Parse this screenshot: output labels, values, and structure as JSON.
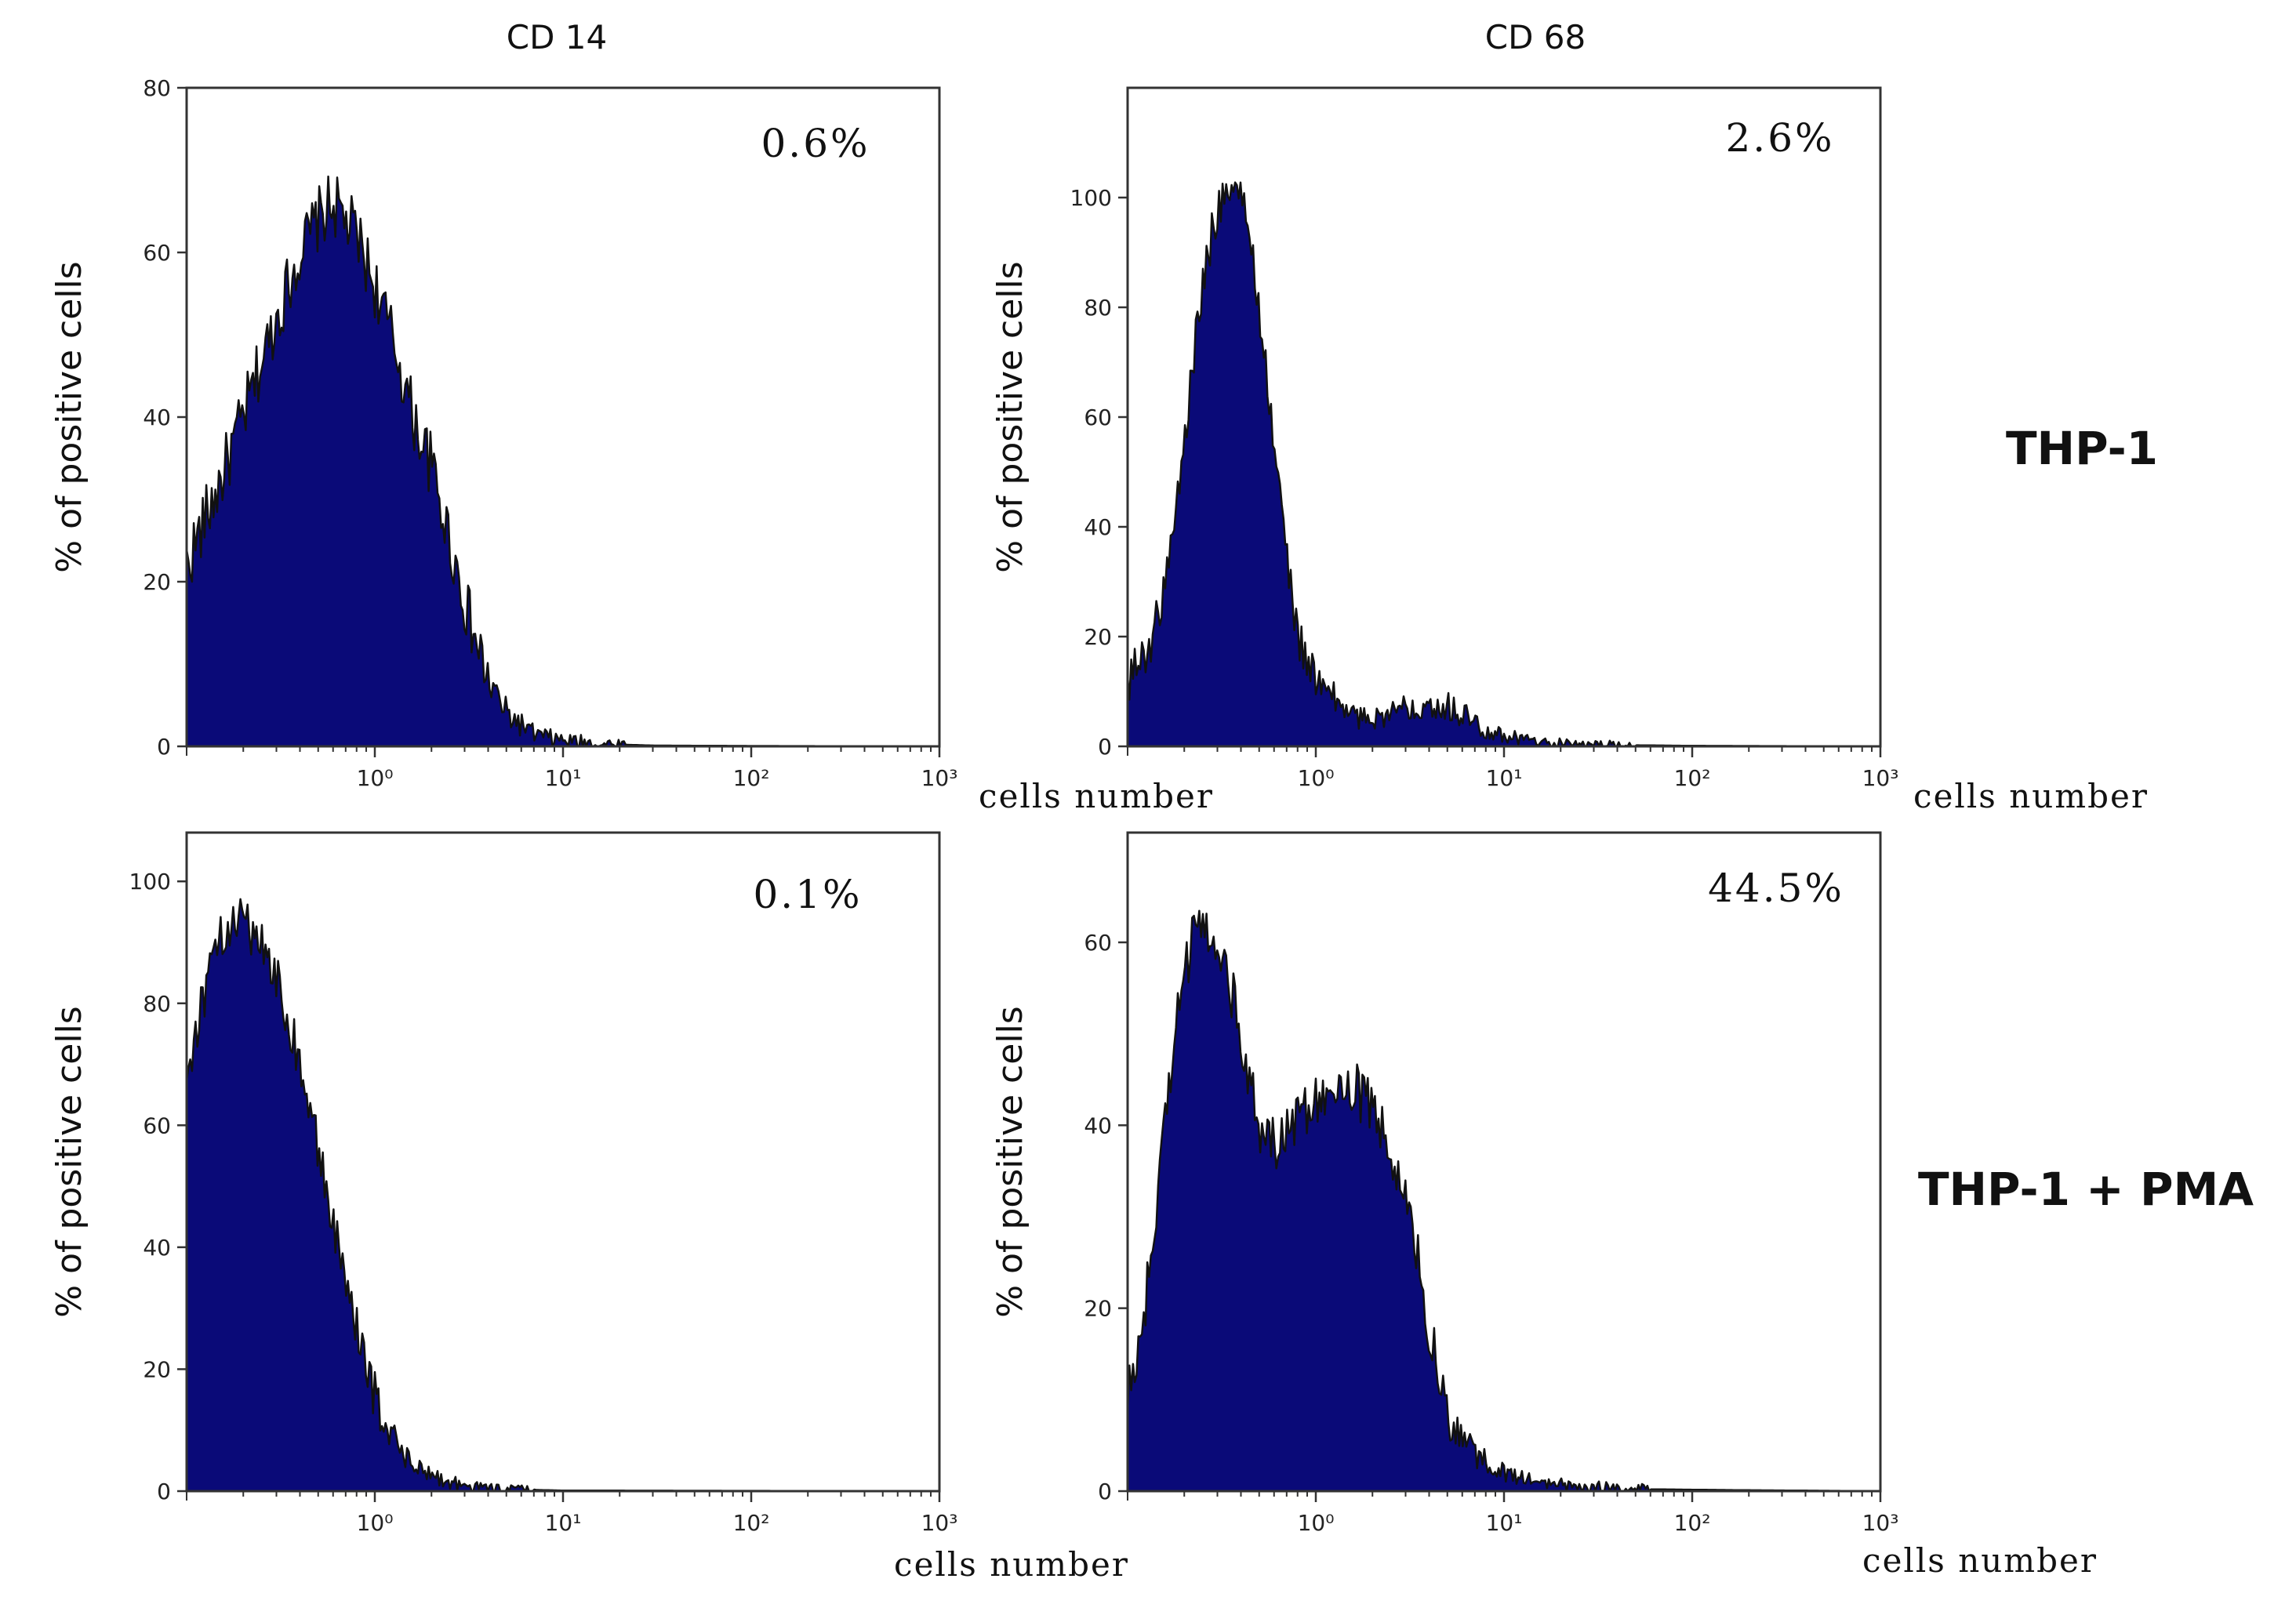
{
  "figure": {
    "column_titles": [
      "CD 14",
      "CD 68"
    ],
    "row_labels": [
      "THP-1",
      "THP-1 + PMA"
    ],
    "colors": {
      "fill": "#0a0a78",
      "outline": "#111111",
      "frame": "#333333"
    }
  },
  "chart_data": [
    {
      "type": "area",
      "name": "CD 14 / THP-1",
      "percent_label": "0.6%",
      "ylabel": "% of positive cells",
      "xlabel": "cells number",
      "xscale": "log",
      "xlim": [
        0.1,
        1000
      ],
      "ylim": [
        0,
        80
      ],
      "yticks": [
        0,
        20,
        40,
        60,
        80
      ],
      "xticks": [
        {
          "value": 1,
          "label": "10⁰"
        },
        {
          "value": 10,
          "label": "10¹"
        },
        {
          "value": 100,
          "label": "10²"
        },
        {
          "value": 1000,
          "label": "10³"
        }
      ],
      "x": [
        0.1,
        0.15,
        0.2,
        0.3,
        0.4,
        0.5,
        0.6,
        0.8,
        1.0,
        1.3,
        1.6,
        2.0,
        2.5,
        3.2,
        4.0,
        5.0,
        7.0,
        10,
        15,
        30,
        100,
        1000
      ],
      "values": [
        22,
        32,
        40,
        52,
        60,
        64,
        66,
        62,
        56,
        48,
        40,
        34,
        25,
        15,
        8,
        4,
        1.5,
        0.7,
        0.3,
        0.1,
        0.05,
        0
      ],
      "noise": 4
    },
    {
      "type": "area",
      "name": "CD 68 / THP-1",
      "percent_label": "2.6%",
      "ylabel": "% of positive cells",
      "xlabel": "cells number",
      "xscale": "log",
      "xlim": [
        0.1,
        1000
      ],
      "ylim": [
        0,
        120
      ],
      "yticks": [
        0,
        20,
        40,
        60,
        80,
        100
      ],
      "xticks": [
        {
          "value": 1,
          "label": "10⁰"
        },
        {
          "value": 10,
          "label": "10¹"
        },
        {
          "value": 100,
          "label": "10²"
        },
        {
          "value": 1000,
          "label": "10³"
        }
      ],
      "x": [
        0.1,
        0.13,
        0.16,
        0.2,
        0.25,
        0.3,
        0.35,
        0.4,
        0.45,
        0.5,
        0.6,
        0.7,
        0.8,
        1.0,
        1.3,
        1.7,
        2.5,
        3.5,
        4.5,
        6,
        8,
        10,
        15,
        25,
        100,
        1000
      ],
      "values": [
        12,
        18,
        30,
        55,
        85,
        98,
        103,
        100,
        92,
        80,
        55,
        35,
        20,
        12,
        8,
        5,
        6,
        8,
        8,
        6,
        3,
        2,
        0.8,
        0.3,
        0.1,
        0
      ],
      "noise": 4
    },
    {
      "type": "area",
      "name": "CD 14 / THP-1 + PMA",
      "percent_label": "0.1%",
      "ylabel": "% of positive cells",
      "xlabel": "cells number",
      "xscale": "log",
      "xlim": [
        0.1,
        1000
      ],
      "ylim": [
        0,
        108
      ],
      "yticks": [
        0,
        20,
        40,
        60,
        80,
        100
      ],
      "xticks": [
        {
          "value": 1,
          "label": "10⁰"
        },
        {
          "value": 10,
          "label": "10¹"
        },
        {
          "value": 100,
          "label": "10²"
        },
        {
          "value": 1000,
          "label": "10³"
        }
      ],
      "x": [
        0.1,
        0.12,
        0.15,
        0.18,
        0.22,
        0.27,
        0.33,
        0.4,
        0.5,
        0.6,
        0.75,
        0.9,
        1.1,
        1.4,
        1.8,
        2.5,
        3.5,
        5,
        10,
        100,
        1000
      ],
      "values": [
        68,
        80,
        90,
        94,
        92,
        88,
        80,
        70,
        56,
        44,
        30,
        20,
        12,
        6,
        3,
        1.5,
        0.6,
        0.3,
        0.1,
        0.05,
        0
      ],
      "noise": 4
    },
    {
      "type": "area",
      "name": "CD 68 / THP-1 + PMA",
      "percent_label": "44.5%",
      "ylabel": "% of positive cells",
      "xlabel": "cells number",
      "xscale": "log",
      "xlim": [
        0.1,
        1000
      ],
      "ylim": [
        0,
        72
      ],
      "yticks": [
        0,
        20,
        40,
        60
      ],
      "xticks": [
        {
          "value": 1,
          "label": "10⁰"
        },
        {
          "value": 10,
          "label": "10¹"
        },
        {
          "value": 100,
          "label": "10²"
        },
        {
          "value": 1000,
          "label": "10³"
        }
      ],
      "x": [
        0.1,
        0.12,
        0.15,
        0.18,
        0.22,
        0.27,
        0.33,
        0.4,
        0.5,
        0.6,
        0.75,
        0.9,
        1.1,
        1.4,
        1.8,
        2.2,
        2.7,
        3.3,
        4,
        5,
        7,
        10,
        15,
        25,
        60,
        200,
        1000
      ],
      "values": [
        10,
        18,
        35,
        52,
        60,
        62,
        58,
        50,
        40,
        38,
        40,
        42,
        44,
        45,
        43,
        40,
        35,
        28,
        18,
        8,
        4,
        2,
        1,
        0.5,
        0.2,
        0.1,
        0
      ],
      "noise": 3
    }
  ]
}
